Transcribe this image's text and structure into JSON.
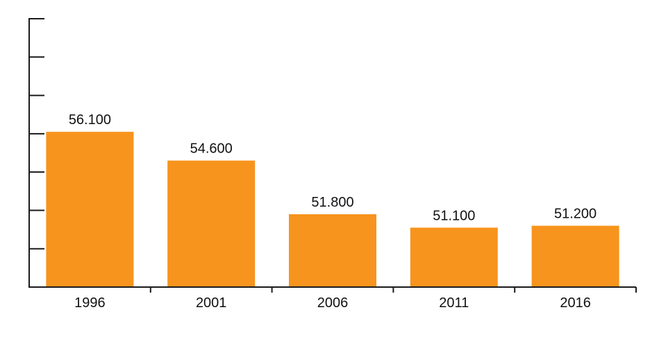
{
  "chart_data": {
    "type": "bar",
    "categories": [
      "1996",
      "2001",
      "2006",
      "2011",
      "2016"
    ],
    "values": [
      56.1,
      54.6,
      51.8,
      51.1,
      51.2
    ],
    "data_labels": [
      "56.100",
      "54.600",
      "51.800",
      "51.100",
      "51.200"
    ],
    "ylim": [
      48,
      62
    ],
    "y_tick_step": 2,
    "y_tick_labels_shown": false,
    "grid": false,
    "legend": "none",
    "colors": {
      "bar": "#f7941d",
      "axis": "#1a1a1a"
    },
    "title": "",
    "xlabel": "",
    "ylabel": ""
  }
}
